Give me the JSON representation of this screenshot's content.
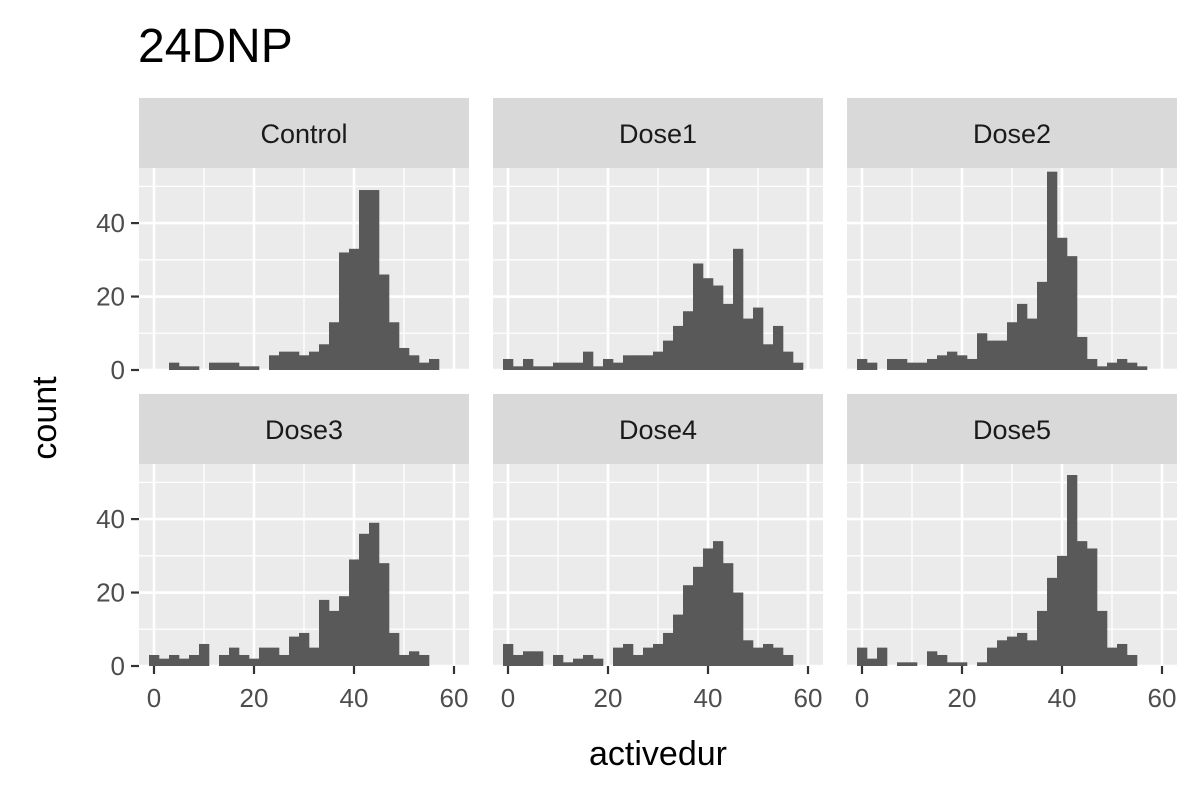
{
  "chart_data": {
    "type": "bar",
    "title": "24DNP",
    "xlabel": "activedur",
    "ylabel": "count",
    "bin_width": 2,
    "xlim": [
      -3,
      63
    ],
    "ylim": [
      0,
      55
    ],
    "x_ticks": [
      0,
      20,
      40,
      60
    ],
    "y_ticks": [
      0,
      20,
      40
    ],
    "grid": true,
    "layout": {
      "rows": 2,
      "cols": 3
    },
    "colors": {
      "bar": "#595959",
      "panel": "#ebebeb",
      "strip": "#d9d9d9",
      "grid": "#ffffff"
    },
    "panels": [
      {
        "name": "Control",
        "bin_centers": [
          0,
          2,
          4,
          6,
          8,
          10,
          12,
          14,
          16,
          18,
          20,
          22,
          24,
          26,
          28,
          30,
          32,
          34,
          36,
          38,
          40,
          42,
          44,
          46,
          48,
          50,
          52,
          54,
          56,
          58
        ],
        "counts": [
          0,
          0,
          2,
          1,
          1,
          0,
          2,
          2,
          2,
          1,
          1,
          0,
          4,
          5,
          5,
          4,
          5,
          7,
          13,
          32,
          33,
          49,
          49,
          26,
          13,
          6,
          4,
          2,
          3,
          0
        ]
      },
      {
        "name": "Dose1",
        "bin_centers": [
          0,
          2,
          4,
          6,
          8,
          10,
          12,
          14,
          16,
          18,
          20,
          22,
          24,
          26,
          28,
          30,
          32,
          34,
          36,
          38,
          40,
          42,
          44,
          46,
          48,
          50,
          52,
          54,
          56,
          58
        ],
        "counts": [
          3,
          1,
          3,
          1,
          1,
          2,
          2,
          2,
          5,
          1,
          3,
          2,
          4,
          4,
          4,
          5,
          8,
          12,
          16,
          29,
          25,
          23,
          18,
          33,
          14,
          17,
          7,
          12,
          5,
          2
        ]
      },
      {
        "name": "Dose2",
        "bin_centers": [
          0,
          2,
          4,
          6,
          8,
          10,
          12,
          14,
          16,
          18,
          20,
          22,
          24,
          26,
          28,
          30,
          32,
          34,
          36,
          38,
          40,
          42,
          44,
          46,
          48,
          50,
          52,
          54,
          56,
          58
        ],
        "counts": [
          3,
          2,
          0,
          3,
          3,
          2,
          2,
          3,
          4,
          5,
          4,
          3,
          10,
          8,
          8,
          13,
          18,
          14,
          24,
          54,
          36,
          31,
          9,
          3,
          1,
          2,
          3,
          2,
          1,
          0
        ]
      },
      {
        "name": "Dose3",
        "bin_centers": [
          0,
          2,
          4,
          6,
          8,
          10,
          12,
          14,
          16,
          18,
          20,
          22,
          24,
          26,
          28,
          30,
          32,
          34,
          36,
          38,
          40,
          42,
          44,
          46,
          48,
          50,
          52,
          54,
          56,
          58
        ],
        "counts": [
          3,
          2,
          3,
          2,
          3,
          6,
          0,
          3,
          5,
          3,
          2,
          5,
          5,
          3,
          8,
          9,
          5,
          18,
          15,
          19,
          29,
          36,
          39,
          28,
          9,
          3,
          4,
          3,
          0,
          0
        ]
      },
      {
        "name": "Dose4",
        "bin_centers": [
          0,
          2,
          4,
          6,
          8,
          10,
          12,
          14,
          16,
          18,
          20,
          22,
          24,
          26,
          28,
          30,
          32,
          34,
          36,
          38,
          40,
          42,
          44,
          46,
          48,
          50,
          52,
          54,
          56,
          58
        ],
        "counts": [
          6,
          3,
          4,
          4,
          0,
          3,
          1,
          2,
          3,
          2,
          0,
          5,
          6,
          3,
          5,
          6,
          9,
          14,
          22,
          27,
          32,
          34,
          28,
          20,
          7,
          5,
          6,
          5,
          3,
          0
        ]
      },
      {
        "name": "Dose5",
        "bin_centers": [
          0,
          2,
          4,
          6,
          8,
          10,
          12,
          14,
          16,
          18,
          20,
          22,
          24,
          26,
          28,
          30,
          32,
          34,
          36,
          38,
          40,
          42,
          44,
          46,
          48,
          50,
          52,
          54,
          56,
          58
        ],
        "counts": [
          5,
          2,
          5,
          0,
          1,
          1,
          0,
          4,
          3,
          1,
          1,
          0,
          1,
          5,
          7,
          8,
          9,
          7,
          15,
          24,
          30,
          52,
          34,
          32,
          15,
          5,
          6,
          3,
          0,
          0
        ]
      }
    ]
  }
}
